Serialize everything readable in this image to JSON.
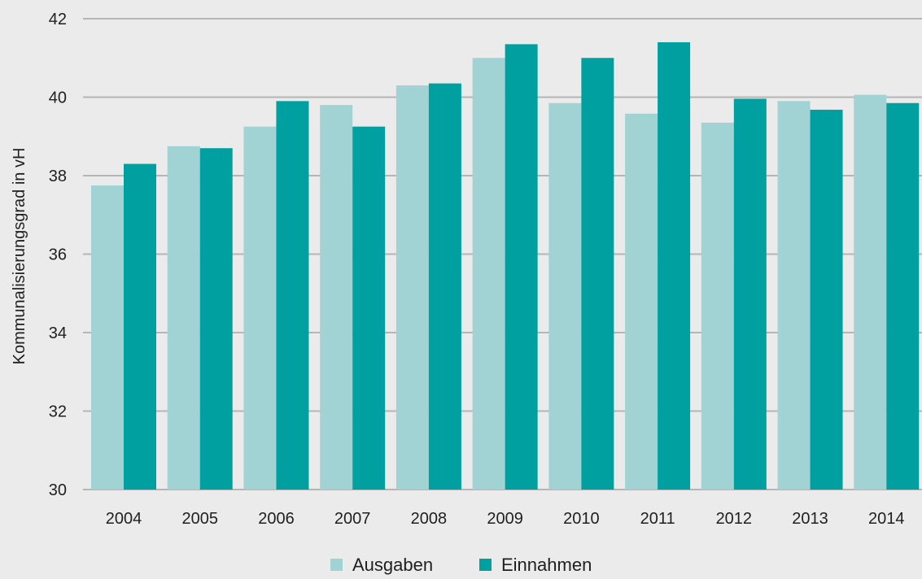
{
  "chart_data": {
    "type": "bar",
    "title": "",
    "xlabel": "",
    "ylabel": "Kommunalisierungsgrad in vH",
    "categories": [
      "2004",
      "2005",
      "2006",
      "2007",
      "2008",
      "2009",
      "2010",
      "2011",
      "2012",
      "2013",
      "2014"
    ],
    "series": [
      {
        "name": "Ausgaben",
        "color": "#a1d3d4",
        "values": [
          37.75,
          38.75,
          39.25,
          39.8,
          40.3,
          41.0,
          39.85,
          39.58,
          39.35,
          39.9,
          40.06
        ]
      },
      {
        "name": "Einnahmen",
        "color": "#00a0a0",
        "values": [
          38.3,
          38.7,
          39.9,
          39.25,
          40.35,
          41.35,
          41.0,
          41.4,
          39.96,
          39.68,
          39.85
        ]
      }
    ],
    "ylim": [
      30,
      42
    ],
    "yticks": [
      "30",
      "32",
      "34",
      "36",
      "38",
      "40",
      "42"
    ],
    "grid": true,
    "gridline_color": "#b5b5b5",
    "background": "#ebebeb",
    "legend_position": "bottom-center"
  }
}
